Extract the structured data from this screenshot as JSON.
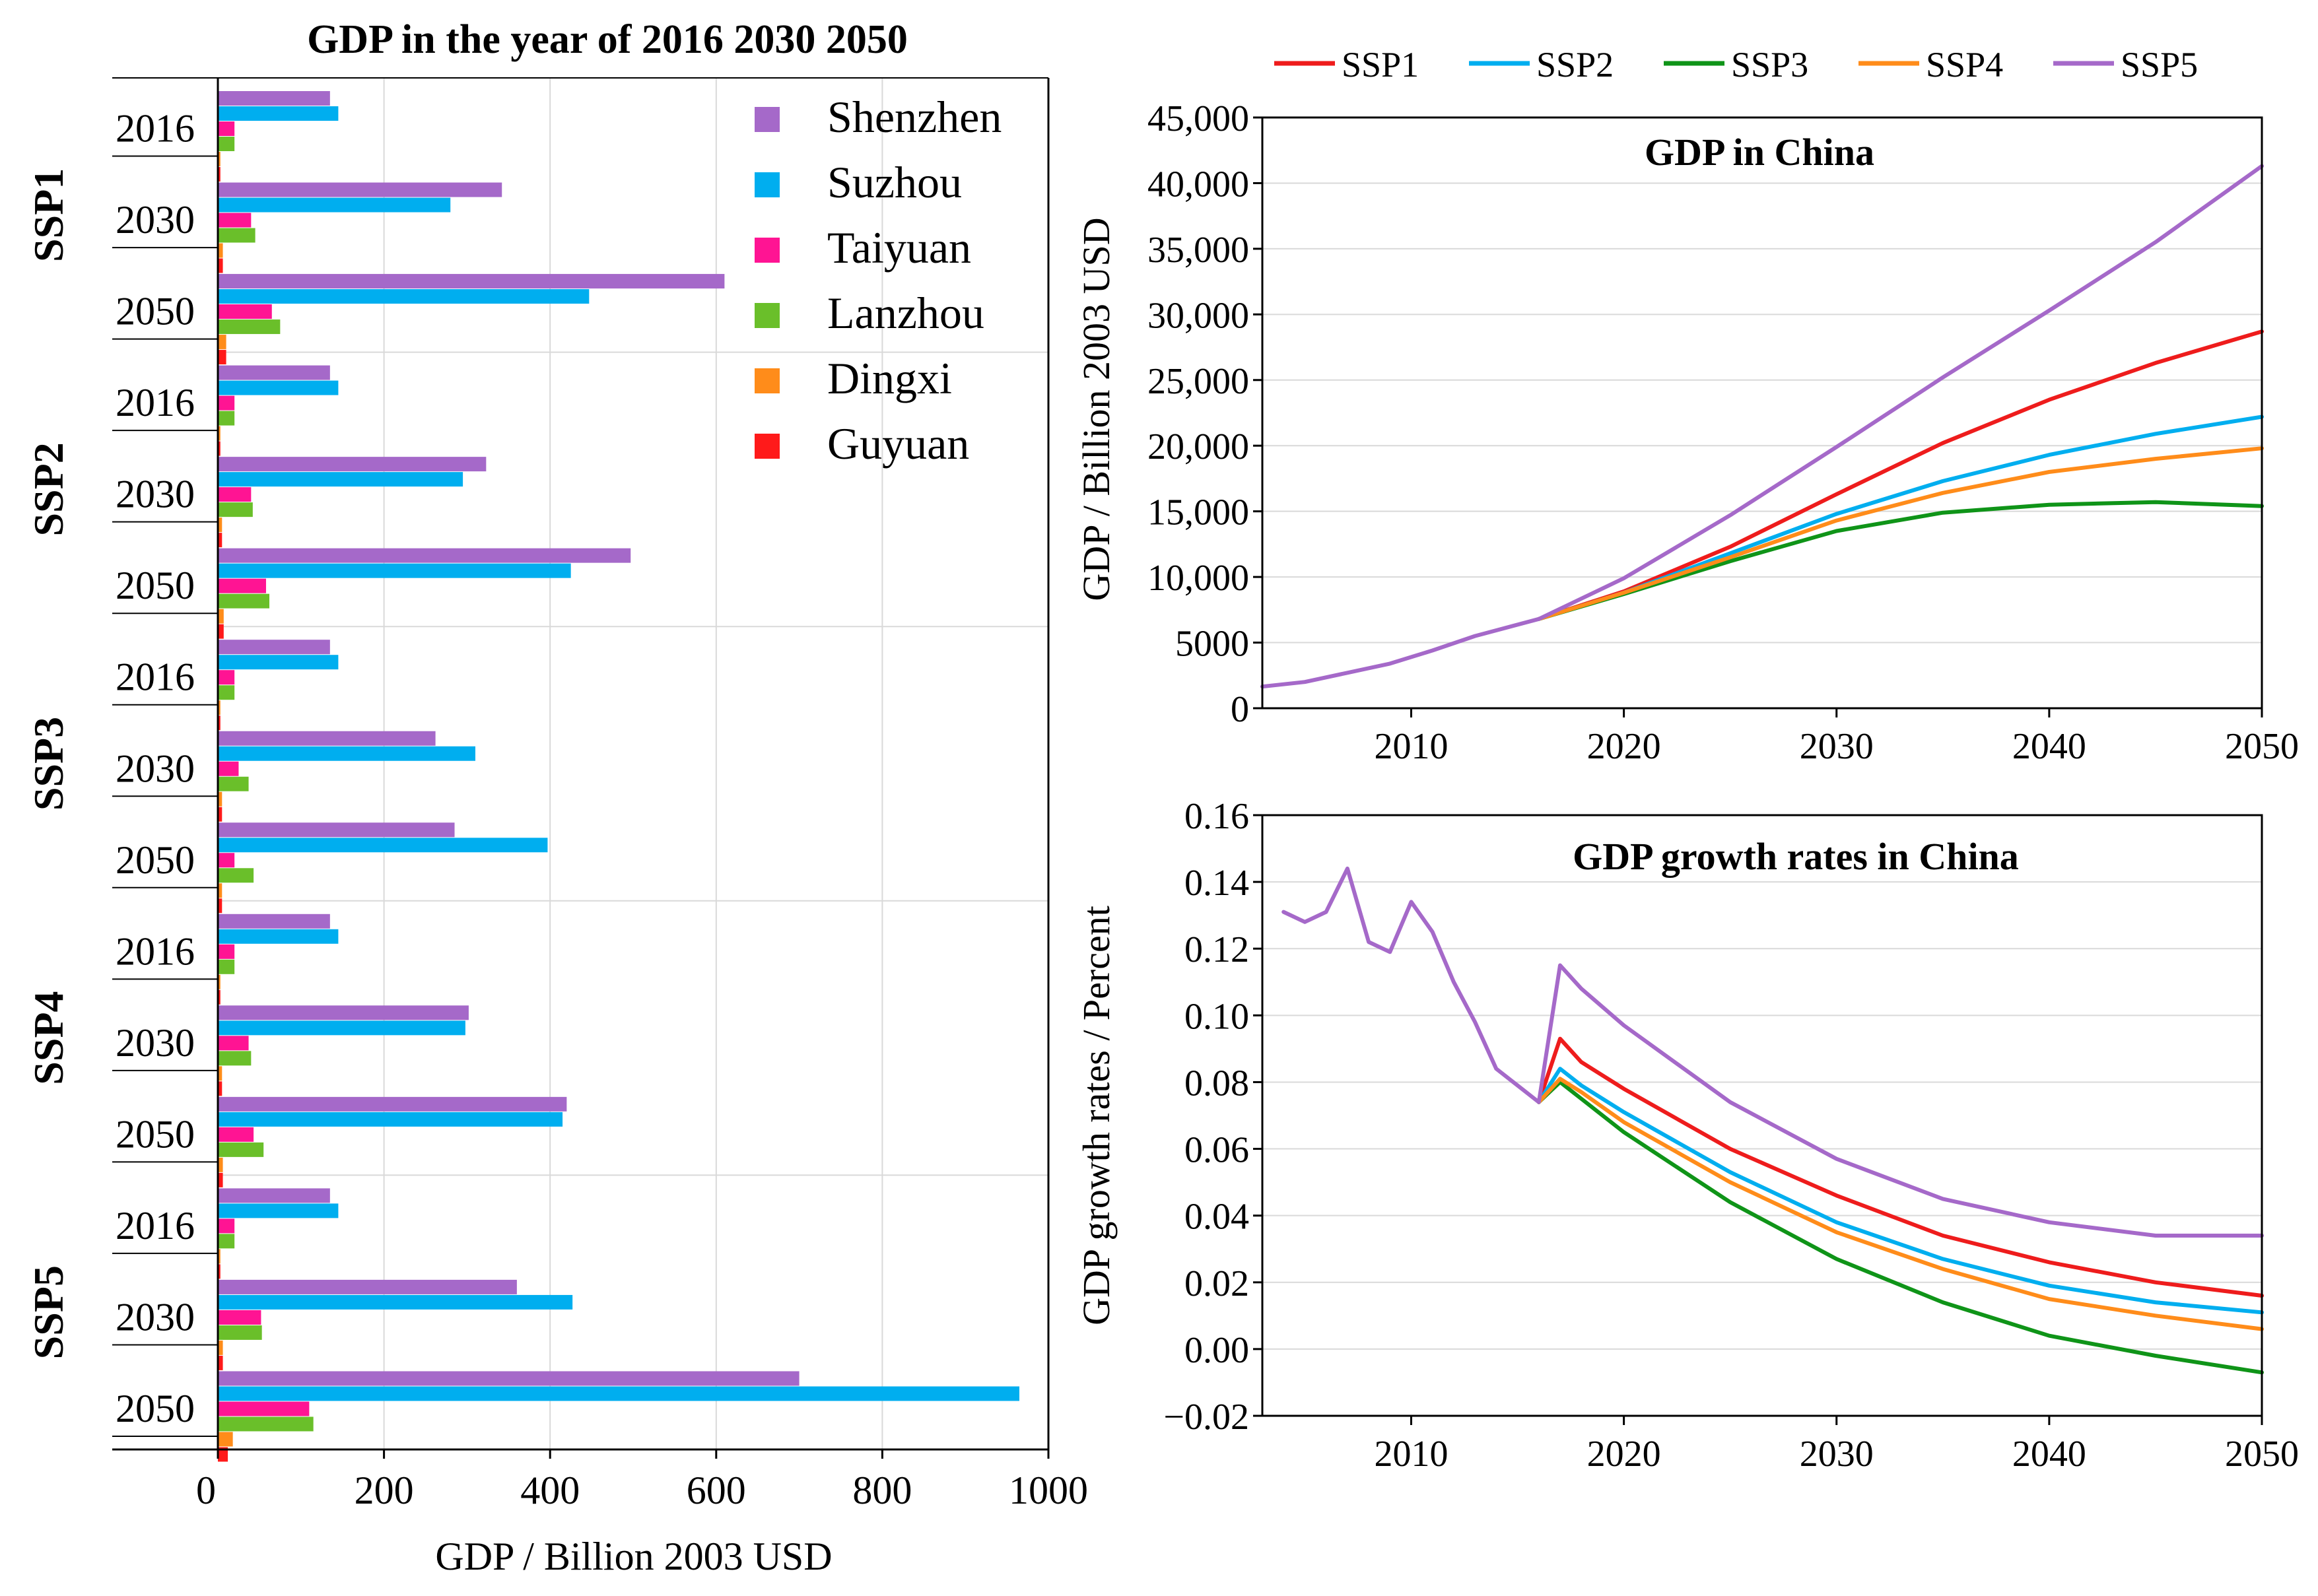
{
  "figure": {
    "left_panel": {
      "title": "GDP in the year of 2016 2030 2050",
      "xlabel": "GDP / Billion 2003 USD"
    },
    "top_right_panel": {
      "title": "GDP in China",
      "ylabel": "GDP / Billion 2003 USD"
    },
    "bottom_right_panel": {
      "title": "GDP growth rates  in China",
      "ylabel": "GDP growth rates / Percent"
    }
  },
  "chart_data": [
    {
      "type": "bar",
      "orientation": "horizontal",
      "title": "GDP in the year of 2016 2030 2050",
      "xlabel": "GDP / Billion 2003 USD",
      "xlim": [
        0,
        1000
      ],
      "xticks": [
        "0",
        "200",
        "400",
        "600",
        "800",
        "1000"
      ],
      "grid": true,
      "legend_position": "top-right",
      "cities": [
        "Shenzhen",
        "Suzhou",
        "Taiyuan",
        "Lanzhou",
        "Dingxi",
        "Guyuan"
      ],
      "city_colors": [
        "#A569C9",
        "#00AEEF",
        "#FF1493",
        "#6ABF2A",
        "#FF8C1A",
        "#FF1A1A"
      ],
      "groups": [
        {
          "scenario": "SSP1",
          "years": [
            {
              "year": "2016",
              "values": [
                135,
                145,
                20,
                20,
                3,
                3
              ]
            },
            {
              "year": "2030",
              "values": [
                342,
                280,
                40,
                45,
                6,
                6
              ]
            },
            {
              "year": "2050",
              "values": [
                610,
                447,
                65,
                75,
                10,
                10
              ]
            }
          ]
        },
        {
          "scenario": "SSP2",
          "years": [
            {
              "year": "2016",
              "values": [
                135,
                145,
                20,
                20,
                3,
                3
              ]
            },
            {
              "year": "2030",
              "values": [
                323,
                295,
                40,
                42,
                5,
                5
              ]
            },
            {
              "year": "2050",
              "values": [
                497,
                425,
                58,
                62,
                7,
                7
              ]
            }
          ]
        },
        {
          "scenario": "SSP3",
          "years": [
            {
              "year": "2016",
              "values": [
                135,
                145,
                20,
                20,
                3,
                3
              ]
            },
            {
              "year": "2030",
              "values": [
                262,
                310,
                25,
                37,
                5,
                5
              ]
            },
            {
              "year": "2050",
              "values": [
                285,
                397,
                20,
                43,
                5,
                5
              ]
            }
          ]
        },
        {
          "scenario": "SSP4",
          "years": [
            {
              "year": "2016",
              "values": [
                135,
                145,
                20,
                20,
                3,
                3
              ]
            },
            {
              "year": "2030",
              "values": [
                302,
                298,
                37,
                40,
                5,
                5
              ]
            },
            {
              "year": "2050",
              "values": [
                420,
                415,
                43,
                55,
                6,
                6
              ]
            }
          ]
        },
        {
          "scenario": "SSP5",
          "years": [
            {
              "year": "2016",
              "values": [
                135,
                145,
                20,
                20,
                3,
                3
              ]
            },
            {
              "year": "2030",
              "values": [
                360,
                427,
                52,
                53,
                6,
                6
              ]
            },
            {
              "year": "2050",
              "values": [
                700,
                965,
                110,
                115,
                18,
                12
              ]
            }
          ]
        }
      ]
    },
    {
      "type": "line",
      "title": "GDP in China",
      "xlabel": "",
      "ylabel": "GDP / Billion 2003 USD",
      "xlim": [
        2003,
        2050
      ],
      "ylim": [
        0,
        45000
      ],
      "xticks": [
        "2010",
        "2020",
        "2030",
        "2040",
        "2050"
      ],
      "yticks": [
        "0",
        "5000",
        "10,000",
        "15,000",
        "20,000",
        "25,000",
        "30,000",
        "35,000",
        "40,000",
        "45,000"
      ],
      "legend_position": "top",
      "series": [
        {
          "name": "SSP1",
          "color": "#EE1C1C",
          "points": [
            [
              2016,
              6800
            ],
            [
              2020,
              8900
            ],
            [
              2025,
              12300
            ],
            [
              2030,
              16300
            ],
            [
              2035,
              20200
            ],
            [
              2040,
              23500
            ],
            [
              2045,
              26300
            ],
            [
              2050,
              28700
            ]
          ]
        },
        {
          "name": "SSP2",
          "color": "#00AEEF",
          "points": [
            [
              2016,
              6800
            ],
            [
              2020,
              8800
            ],
            [
              2025,
              11800
            ],
            [
              2030,
              14800
            ],
            [
              2035,
              17300
            ],
            [
              2040,
              19300
            ],
            [
              2045,
              20900
            ],
            [
              2050,
              22200
            ]
          ]
        },
        {
          "name": "SSP3",
          "color": "#0F9418",
          "points": [
            [
              2016,
              6800
            ],
            [
              2020,
              8700
            ],
            [
              2025,
              11200
            ],
            [
              2030,
              13500
            ],
            [
              2035,
              14900
            ],
            [
              2040,
              15500
            ],
            [
              2045,
              15700
            ],
            [
              2050,
              15400
            ]
          ]
        },
        {
          "name": "SSP4",
          "color": "#FF8C1A",
          "points": [
            [
              2016,
              6800
            ],
            [
              2020,
              8800
            ],
            [
              2025,
              11500
            ],
            [
              2030,
              14300
            ],
            [
              2035,
              16400
            ],
            [
              2040,
              18000
            ],
            [
              2045,
              19000
            ],
            [
              2050,
              19800
            ]
          ]
        },
        {
          "name": "SSP5",
          "color": "#A569C9",
          "points": [
            [
              2003,
              1650
            ],
            [
              2005,
              2000
            ],
            [
              2007,
              2700
            ],
            [
              2009,
              3400
            ],
            [
              2011,
              4400
            ],
            [
              2013,
              5500
            ],
            [
              2016,
              6800
            ],
            [
              2020,
              9900
            ],
            [
              2025,
              14700
            ],
            [
              2030,
              19900
            ],
            [
              2035,
              25200
            ],
            [
              2040,
              30300
            ],
            [
              2045,
              35500
            ],
            [
              2050,
              41300
            ]
          ]
        }
      ]
    },
    {
      "type": "line",
      "title": "GDP growth rates  in China",
      "xlabel": "",
      "ylabel": "GDP growth rates / Percent",
      "xlim": [
        2003,
        2050
      ],
      "ylim": [
        -0.02,
        0.16
      ],
      "xticks": [
        "2010",
        "2020",
        "2030",
        "2040",
        "2050"
      ],
      "yticks": [
        "−0.02",
        "0.00",
        "0.02",
        "0.04",
        "0.06",
        "0.08",
        "0.10",
        "0.12",
        "0.14",
        "0.16"
      ],
      "series": [
        {
          "name": "SSP1",
          "color": "#EE1C1C",
          "points": [
            [
              2016,
              0.074
            ],
            [
              2017,
              0.093
            ],
            [
              2018,
              0.086
            ],
            [
              2020,
              0.078
            ],
            [
              2025,
              0.06
            ],
            [
              2030,
              0.046
            ],
            [
              2035,
              0.034
            ],
            [
              2040,
              0.026
            ],
            [
              2045,
              0.02
            ],
            [
              2050,
              0.016
            ]
          ]
        },
        {
          "name": "SSP2",
          "color": "#00AEEF",
          "points": [
            [
              2016,
              0.074
            ],
            [
              2017,
              0.084
            ],
            [
              2018,
              0.079
            ],
            [
              2020,
              0.071
            ],
            [
              2025,
              0.053
            ],
            [
              2030,
              0.038
            ],
            [
              2035,
              0.027
            ],
            [
              2040,
              0.019
            ],
            [
              2045,
              0.014
            ],
            [
              2050,
              0.011
            ]
          ]
        },
        {
          "name": "SSP3",
          "color": "#0F9418",
          "points": [
            [
              2016,
              0.074
            ],
            [
              2017,
              0.08
            ],
            [
              2018,
              0.075
            ],
            [
              2020,
              0.065
            ],
            [
              2025,
              0.044
            ],
            [
              2030,
              0.027
            ],
            [
              2035,
              0.014
            ],
            [
              2040,
              0.004
            ],
            [
              2045,
              -0.002
            ],
            [
              2050,
              -0.007
            ]
          ]
        },
        {
          "name": "SSP4",
          "color": "#FF8C1A",
          "points": [
            [
              2016,
              0.074
            ],
            [
              2017,
              0.081
            ],
            [
              2018,
              0.077
            ],
            [
              2020,
              0.068
            ],
            [
              2025,
              0.05
            ],
            [
              2030,
              0.035
            ],
            [
              2035,
              0.024
            ],
            [
              2040,
              0.015
            ],
            [
              2045,
              0.01
            ],
            [
              2050,
              0.006
            ]
          ]
        },
        {
          "name": "SSP5",
          "color": "#A569C9",
          "points": [
            [
              2004,
              0.131
            ],
            [
              2005,
              0.128
            ],
            [
              2006,
              0.131
            ],
            [
              2007,
              0.144
            ],
            [
              2008,
              0.122
            ],
            [
              2009,
              0.119
            ],
            [
              2010,
              0.134
            ],
            [
              2011,
              0.125
            ],
            [
              2012,
              0.11
            ],
            [
              2013,
              0.098
            ],
            [
              2014,
              0.084
            ],
            [
              2015,
              0.079
            ],
            [
              2016,
              0.074
            ],
            [
              2017,
              0.115
            ],
            [
              2018,
              0.108
            ],
            [
              2020,
              0.097
            ],
            [
              2025,
              0.074
            ],
            [
              2030,
              0.057
            ],
            [
              2035,
              0.045
            ],
            [
              2040,
              0.038
            ],
            [
              2045,
              0.034
            ],
            [
              2050,
              0.034
            ]
          ]
        }
      ]
    }
  ]
}
